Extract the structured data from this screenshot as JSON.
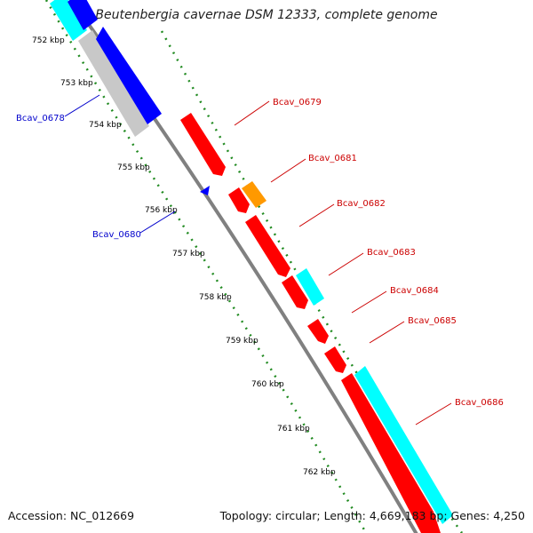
{
  "title": "Beutenbergia cavernae DSM 12333, complete genome",
  "footer": {
    "accession": "Accession: NC_012669",
    "summary": "Topology: circular; Length: 4,669,183 bp; Genes: 4,250"
  },
  "colors": {
    "backbone": "#808080",
    "tick": "#228b22",
    "forward_label": "#cc0000",
    "reverse_label": "#0000cc",
    "red": "#ff0000",
    "orange": "#ff9900",
    "cyan": "#00ffff",
    "blue": "#0000ff",
    "gray": "#c8c8c8"
  },
  "scale": {
    "unit": "kbp",
    "labels": [
      "752 kbp",
      "753 kbp",
      "754 kbp",
      "755 kbp",
      "756 kbp",
      "757 kbp",
      "758 kbp",
      "759 kbp",
      "760 kbp",
      "761 kbp",
      "762 kbp"
    ]
  },
  "gene_labels": {
    "forward": [
      "Bcav_0679",
      "Bcav_0681",
      "Bcav_0682",
      "Bcav_0683",
      "Bcav_0684",
      "Bcav_0685",
      "Bcav_0686"
    ],
    "reverse": [
      "Bcav_0678",
      "Bcav_0680"
    ]
  }
}
